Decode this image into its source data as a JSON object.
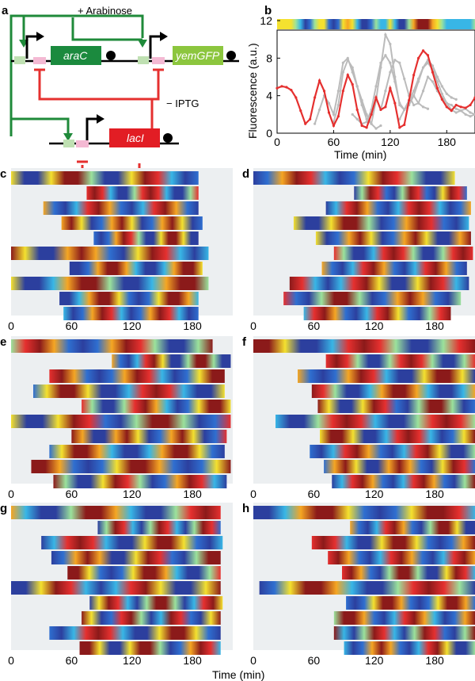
{
  "panels": {
    "a": {
      "label": "a",
      "arabinose": "+ Arabinose",
      "iptg": "− IPTG",
      "genes": [
        "araC",
        "yemGFP",
        "lacI"
      ],
      "colors": {
        "activation": "#1f8a3a",
        "repression": "#e5302f",
        "araC": "#1b8a3e",
        "yemGFP": "#8cc63e",
        "lacI": "#e21d24"
      }
    },
    "b": {
      "label": "b",
      "xlabel": "Time (min)",
      "ylabel": "Fluorescence (a.u.)",
      "xticks": [
        "0",
        "60",
        "120",
        "180"
      ],
      "yticks": [
        "0",
        "4",
        "8",
        "12"
      ]
    },
    "kymo_labels": [
      "c",
      "d",
      "e",
      "f",
      "g",
      "h"
    ],
    "kymo_xticks": [
      "0",
      "60",
      "120",
      "180"
    ],
    "bottom_xlabel": "Time (min)"
  },
  "chart_data": {
    "type": "line",
    "xlim": [
      0,
      210
    ],
    "ylim": [
      0,
      12
    ],
    "grid": false,
    "series": [
      {
        "color": "#e5302f",
        "x": [
          0,
          5,
          10,
          15,
          20,
          25,
          30,
          35,
          40,
          45,
          50,
          55,
          60,
          65,
          70,
          75,
          80,
          85,
          90,
          95,
          100,
          105,
          110,
          115,
          120,
          125,
          130,
          135,
          140,
          145,
          150,
          155,
          160,
          165,
          170,
          175,
          180,
          185,
          190,
          195,
          200,
          205,
          210
        ],
        "y": [
          4.8,
          5.0,
          4.9,
          4.6,
          3.8,
          2.4,
          1.0,
          1.5,
          3.8,
          5.6,
          4.5,
          2.2,
          0.8,
          1.8,
          4.5,
          6.2,
          5.2,
          2.5,
          0.8,
          0.6,
          2.0,
          3.8,
          2.5,
          2.8,
          4.8,
          3.2,
          0.6,
          0.9,
          3.5,
          6.2,
          8.0,
          8.8,
          8.3,
          6.5,
          4.8,
          3.6,
          2.8,
          2.4,
          3.0,
          2.8,
          2.7,
          3.0,
          3.8
        ]
      },
      {
        "color": "#bbbbbb",
        "x": [
          40,
          45,
          50,
          55,
          60,
          65,
          70,
          75,
          80,
          85,
          90,
          95,
          100,
          105,
          110
        ],
        "y": [
          1.0,
          2.5,
          4.0,
          3.2,
          2.0,
          4.5,
          7.5,
          8.0,
          6.5,
          5.0,
          3.5,
          2.0,
          1.0,
          0.5,
          0.8
        ]
      },
      {
        "color": "#bbbbbb",
        "x": [
          60,
          65,
          70,
          75,
          80,
          85,
          90,
          95,
          100,
          105,
          110,
          115,
          120,
          125,
          130,
          135,
          140,
          145,
          150,
          155,
          160
        ],
        "y": [
          1.2,
          3.0,
          6.5,
          7.8,
          7.0,
          5.0,
          3.0,
          1.5,
          1.0,
          3.5,
          7.0,
          10.5,
          9.5,
          6.0,
          3.0,
          2.5,
          3.5,
          4.0,
          3.2,
          2.8,
          2.6
        ]
      },
      {
        "color": "#bbbbbb",
        "x": [
          80,
          85,
          90,
          95,
          100,
          105,
          110,
          115,
          120,
          125,
          130,
          135,
          140,
          145,
          150,
          155,
          160,
          165,
          170,
          175,
          180,
          185,
          190
        ],
        "y": [
          2.0,
          1.5,
          1.0,
          1.2,
          2.5,
          5.0,
          7.5,
          8.3,
          7.5,
          5.5,
          3.2,
          2.5,
          3.0,
          4.0,
          5.5,
          7.0,
          7.8,
          7.2,
          6.0,
          5.0,
          4.2,
          3.8,
          3.6
        ]
      },
      {
        "color": "#bbbbbb",
        "x": [
          110,
          115,
          120,
          125,
          130,
          135,
          140,
          145,
          150,
          155,
          160,
          165,
          170,
          175,
          180,
          185,
          190,
          195,
          200,
          205,
          210
        ],
        "y": [
          2.5,
          4.5,
          6.5,
          7.8,
          7.5,
          5.8,
          4.0,
          3.0,
          3.2,
          4.5,
          6.0,
          5.5,
          4.5,
          3.8,
          3.2,
          3.0,
          2.6,
          2.4,
          2.6,
          2.2,
          2.0
        ]
      },
      {
        "color": "#bbbbbb",
        "x": [
          130,
          135,
          140,
          145,
          150,
          155,
          160,
          165,
          170,
          175,
          180,
          185,
          190,
          195,
          200,
          205,
          210
        ],
        "y": [
          1.5,
          2.5,
          3.5,
          4.5,
          5.8,
          7.0,
          7.5,
          6.8,
          5.5,
          4.2,
          3.2,
          2.5,
          2.2,
          2.4,
          2.0,
          1.8,
          2.0
        ]
      }
    ]
  },
  "kymographs": [
    {
      "tracks": [
        [
          0,
          186
        ],
        [
          75,
          186
        ],
        [
          32,
          186
        ],
        [
          50,
          190
        ],
        [
          82,
          186
        ],
        [
          0,
          196
        ],
        [
          58,
          190
        ],
        [
          0,
          196
        ],
        [
          48,
          186
        ],
        [
          52,
          186
        ]
      ]
    },
    {
      "tracks": [
        [
          0,
          200
        ],
        [
          100,
          212
        ],
        [
          72,
          216
        ],
        [
          40,
          214
        ],
        [
          62,
          216
        ],
        [
          80,
          218
        ],
        [
          68,
          212
        ],
        [
          36,
          214
        ],
        [
          30,
          206
        ],
        [
          50,
          196
        ]
      ]
    },
    {
      "tracks": [
        [
          0,
          200
        ],
        [
          100,
          218
        ],
        [
          38,
          212
        ],
        [
          22,
          212
        ],
        [
          70,
          218
        ],
        [
          0,
          218
        ],
        [
          60,
          214
        ],
        [
          38,
          212
        ],
        [
          20,
          218
        ],
        [
          42,
          214
        ]
      ]
    },
    {
      "tracks": [
        [
          0,
          236
        ],
        [
          72,
          236
        ],
        [
          44,
          238
        ],
        [
          58,
          236
        ],
        [
          64,
          236
        ],
        [
          22,
          236
        ],
        [
          66,
          236
        ],
        [
          56,
          236
        ],
        [
          70,
          236
        ],
        [
          78,
          238
        ]
      ]
    },
    {
      "tracks": [
        [
          0,
          208
        ],
        [
          86,
          208
        ],
        [
          30,
          210
        ],
        [
          40,
          208
        ],
        [
          56,
          208
        ],
        [
          0,
          208
        ],
        [
          78,
          210
        ],
        [
          70,
          208
        ],
        [
          38,
          208
        ],
        [
          68,
          208
        ]
      ]
    },
    {
      "tracks": [
        [
          0,
          232
        ],
        [
          96,
          236
        ],
        [
          58,
          234
        ],
        [
          74,
          236
        ],
        [
          88,
          236
        ],
        [
          6,
          236
        ],
        [
          92,
          236
        ],
        [
          80,
          234
        ],
        [
          80,
          234
        ],
        [
          90,
          236
        ]
      ]
    }
  ]
}
